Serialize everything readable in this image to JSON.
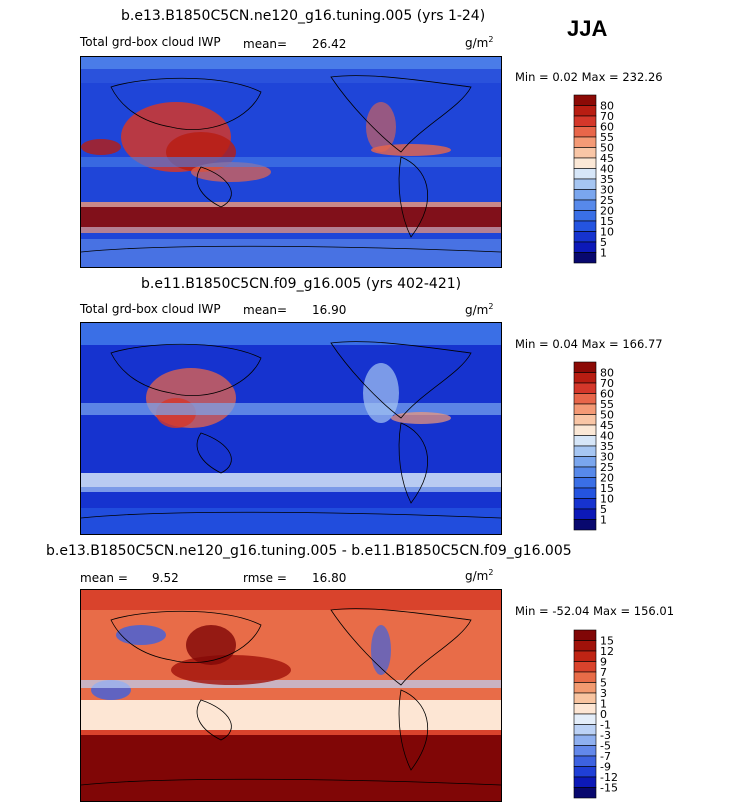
{
  "season": "JJA",
  "unit_label": "g/m",
  "unit_exp": "2",
  "chart_data": [
    {
      "type": "heatmap",
      "title": "b.e13.B1850C5CN.ne120_g16.tuning.005 (yrs 1-24)",
      "variable": "Total grd-box cloud IWP",
      "mean_label": "mean=",
      "mean": "26.42",
      "minmax": "Min =   0.02 Max = 232.26",
      "levels": [
        "1",
        "5",
        "10",
        "15",
        "20",
        "25",
        "30",
        "35",
        "40",
        "45",
        "50",
        "55",
        "60",
        "70",
        "80"
      ],
      "colors": [
        "#08086e",
        "#0c19b8",
        "#1633cf",
        "#2454e0",
        "#3a6fe6",
        "#5789ea",
        "#7aa6ee",
        "#a6c6f2",
        "#d6e6f8",
        "#fbe8d6",
        "#f9c6a6",
        "#f49a76",
        "#e8664a",
        "#d4372a",
        "#b81d12",
        "#8c0a06"
      ]
    },
    {
      "type": "heatmap",
      "title": "b.e11.B1850C5CN.f09_g16.005 (yrs 402-421)",
      "variable": "Total grd-box cloud IWP",
      "mean_label": "mean=",
      "mean": "16.90",
      "minmax": "Min =   0.04 Max = 166.77",
      "levels": [
        "1",
        "5",
        "10",
        "15",
        "20",
        "25",
        "30",
        "35",
        "40",
        "45",
        "50",
        "55",
        "60",
        "70",
        "80"
      ],
      "colors": [
        "#08086e",
        "#0c19b8",
        "#1633cf",
        "#2454e0",
        "#3a6fe6",
        "#5789ea",
        "#7aa6ee",
        "#a6c6f2",
        "#d6e6f8",
        "#fbe8d6",
        "#f9c6a6",
        "#f49a76",
        "#e8664a",
        "#d4372a",
        "#b81d12",
        "#8c0a06"
      ]
    },
    {
      "type": "heatmap",
      "title": "b.e13.B1850C5CN.ne120_g16.tuning.005 - b.e11.B1850C5CN.f09_g16.005",
      "mean_label": "mean =",
      "mean": "9.52",
      "rmse_label": "rmse =",
      "rmse": "16.80",
      "minmax": "Min = -52.04 Max = 156.01",
      "levels": [
        "-15",
        "-12",
        "-9",
        "-7",
        "-5",
        "-3",
        "-1",
        "0",
        "1",
        "3",
        "5",
        "7",
        "9",
        "12",
        "15"
      ],
      "colors": [
        "#08086e",
        "#0c19b8",
        "#1f3fd6",
        "#3d62e0",
        "#6388ea",
        "#8fb0f0",
        "#bcd2f6",
        "#e4eefa",
        "#fde6d4",
        "#f8c4a0",
        "#f29a70",
        "#e86c48",
        "#d9432c",
        "#bf2414",
        "#a0120a",
        "#800606"
      ]
    }
  ]
}
